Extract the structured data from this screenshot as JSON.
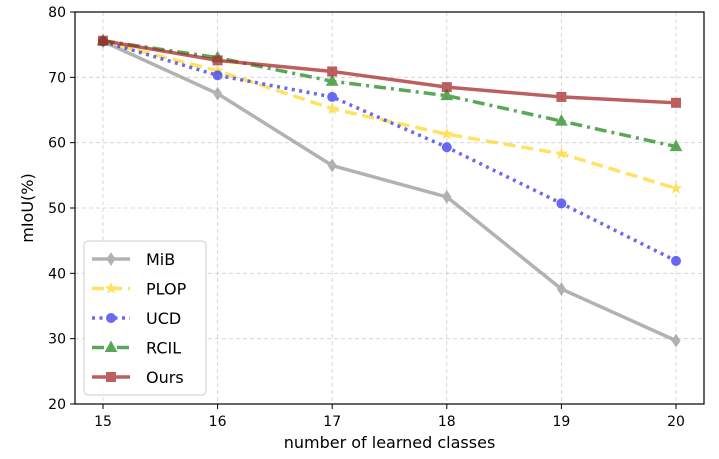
{
  "chart_data": {
    "type": "line",
    "title": "",
    "xlabel": "number of learned classes",
    "ylabel": "mIoU(%)",
    "x": [
      15,
      16,
      17,
      18,
      19,
      20
    ],
    "xticks": [
      "15",
      "16",
      "17",
      "18",
      "19",
      "20"
    ],
    "ylim": [
      20,
      80
    ],
    "yticks": [
      "20",
      "30",
      "40",
      "50",
      "60",
      "70",
      "80"
    ],
    "grid": true,
    "legend_position": "bottom-left",
    "series": [
      {
        "name": "MiB",
        "values": [
          75.5,
          67.5,
          56.5,
          51.7,
          37.6,
          29.7
        ],
        "color": "#999999",
        "style": "solid",
        "marker": "diamond"
      },
      {
        "name": "PLOP",
        "values": [
          75.5,
          71.0,
          65.2,
          61.3,
          58.3,
          53.0
        ],
        "color": "#ffd92f",
        "style": "dashed",
        "marker": "star"
      },
      {
        "name": "UCD",
        "values": [
          75.5,
          70.3,
          67.0,
          59.3,
          50.7,
          41.9
        ],
        "color": "#3737ee",
        "style": "dotted",
        "marker": "circle"
      },
      {
        "name": "RCIL",
        "values": [
          75.6,
          73.0,
          69.4,
          67.2,
          63.3,
          59.4
        ],
        "color": "#228b22",
        "style": "dashdot",
        "marker": "triangle"
      },
      {
        "name": "Ours",
        "values": [
          75.6,
          72.6,
          70.9,
          68.5,
          67.0,
          66.1
        ],
        "color": "#a52a2a",
        "style": "solid",
        "marker": "square"
      }
    ]
  }
}
